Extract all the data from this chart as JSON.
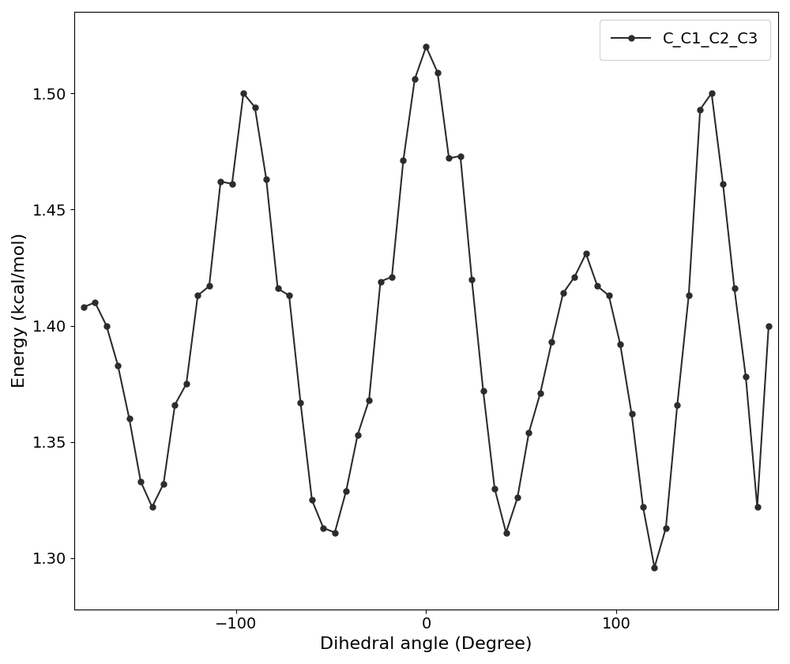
{
  "x": [
    -180,
    -174,
    -168,
    -162,
    -156,
    -150,
    -144,
    -138,
    -132,
    -126,
    -120,
    -114,
    -108,
    -102,
    -96,
    -90,
    -84,
    -78,
    -72,
    -66,
    -60,
    -54,
    -48,
    -42,
    -36,
    -30,
    -24,
    -18,
    -12,
    -6,
    0,
    6,
    12,
    18,
    24,
    30,
    36,
    42,
    48,
    54,
    60,
    66,
    72,
    78,
    84,
    90,
    96,
    102,
    108,
    114,
    120,
    126,
    132,
    138,
    144,
    150,
    156,
    162,
    168,
    174,
    180
  ],
  "y": [
    1.408,
    1.41,
    1.4,
    1.383,
    1.36,
    1.333,
    1.322,
    1.332,
    1.366,
    1.375,
    1.413,
    1.417,
    1.462,
    1.461,
    1.5,
    1.494,
    1.463,
    1.416,
    1.413,
    1.367,
    1.325,
    1.313,
    1.311,
    1.329,
    1.353,
    1.368,
    1.419,
    1.421,
    1.471,
    1.506,
    1.52,
    1.509,
    1.472,
    1.473,
    1.42,
    1.372,
    1.33,
    1.311,
    1.326,
    1.354,
    1.371,
    1.393,
    1.414,
    1.421,
    1.431,
    1.417,
    1.413,
    1.392,
    1.362,
    1.322,
    1.296,
    1.313,
    1.366,
    1.413,
    1.493,
    1.5,
    1.461,
    1.416,
    1.378,
    1.322,
    1.4
  ],
  "xlabel": "Dihedral angle (Degree)",
  "ylabel": "Energy (kcal/mol)",
  "legend_label": "C_C1_C2_C3",
  "line_color": "#2c2c2c",
  "marker": "o",
  "markersize": 5,
  "linewidth": 1.5,
  "xlim": [
    -185,
    185
  ],
  "ylim": [
    1.278,
    1.535
  ],
  "xticks": [
    -100,
    0,
    100
  ],
  "yticks": [
    1.3,
    1.35,
    1.4,
    1.45,
    1.5
  ],
  "legend_loc": "upper right"
}
